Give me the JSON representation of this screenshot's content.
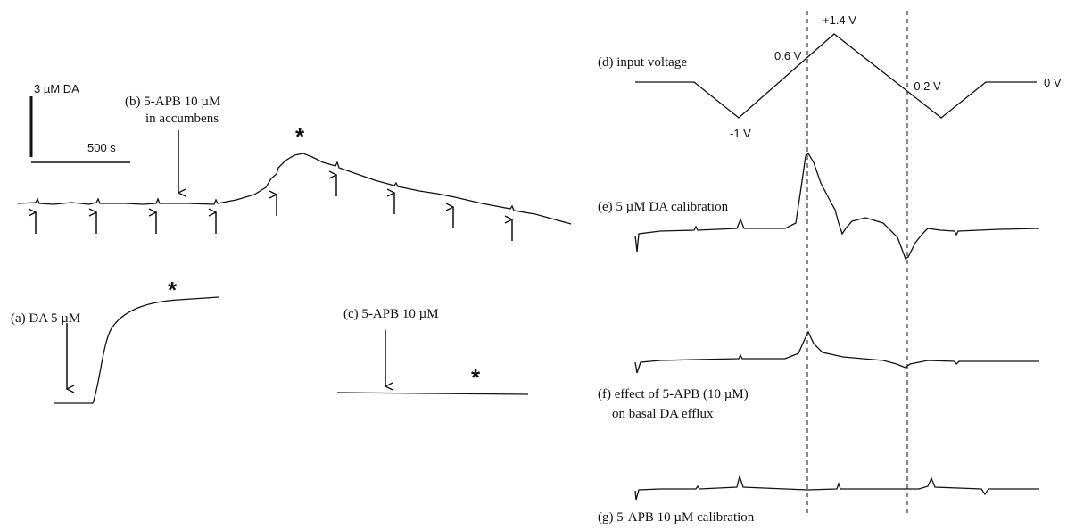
{
  "panel_b": {
    "scale_y": "3 µM DA",
    "scale_x": "500 s",
    "label": "(b) 5-APB 10 µM",
    "label_2": "in accumbens",
    "marker": "*"
  },
  "panel_a": {
    "label": "(a) DA 5 µM",
    "marker": "*"
  },
  "panel_c": {
    "label": "(c) 5-APB 10 µM",
    "marker": "*"
  },
  "panel_d": {
    "label": "(d) input voltage",
    "peak": "+1.4 V",
    "rise": "0.6 V",
    "fall": "-0.2 V",
    "rest": "0 V",
    "min": "-1 V"
  },
  "panel_e": {
    "label": "(e) 5 µM DA calibration"
  },
  "panel_f": {
    "label": "(f) effect of 5-APB (10 µM)",
    "label_2": "on basal DA efflux"
  },
  "panel_g": {
    "label": "(g) 5-APB 10 µM calibration"
  }
}
